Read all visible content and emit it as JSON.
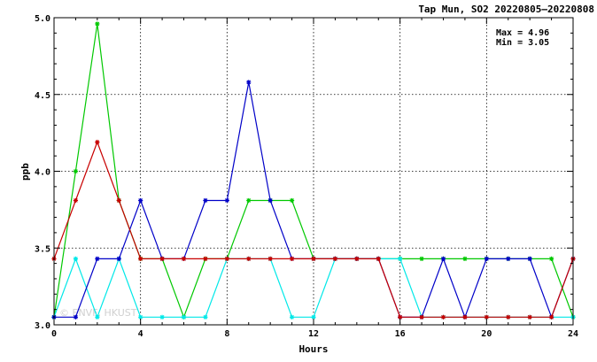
{
  "chart_data": {
    "type": "line",
    "title": "Tap Mun, SO2 20220805—20220808",
    "xlabel": "Hours",
    "ylabel": "ppb",
    "xlim": [
      0,
      24
    ],
    "ylim": [
      3.0,
      5.0
    ],
    "xticks": [
      0,
      4,
      8,
      12,
      16,
      20,
      24
    ],
    "xtick_labels": [
      "0",
      "4",
      "8",
      "12",
      "16",
      "20",
      "24"
    ],
    "yticks": [
      3.0,
      3.5,
      4.0,
      4.5,
      5.0
    ],
    "ytick_labels": [
      "3.0",
      "3.5",
      "4.0",
      "4.5",
      "5.0"
    ],
    "grid": true,
    "annotations": [
      "Max = 4.96",
      "Min = 3.05"
    ],
    "watermark": "© ENVF, HKUST",
    "x": [
      0,
      1,
      2,
      3,
      4,
      5,
      6,
      7,
      8,
      9,
      10,
      11,
      12,
      13,
      14,
      15,
      16,
      17,
      18,
      19,
      20,
      21,
      22,
      23,
      24
    ],
    "series": [
      {
        "color": "#00c800",
        "values": [
          3.05,
          4.0,
          4.96,
          3.81,
          3.43,
          3.43,
          3.05,
          3.43,
          3.43,
          3.81,
          3.81,
          3.81,
          3.43,
          3.43,
          3.43,
          3.43,
          3.43,
          3.43,
          3.43,
          3.43,
          3.43,
          3.43,
          3.43,
          3.43,
          3.05
        ]
      },
      {
        "color": "#00e8e8",
        "values": [
          3.05,
          3.43,
          3.05,
          3.43,
          3.05,
          3.05,
          3.05,
          3.05,
          3.43,
          3.43,
          3.43,
          3.05,
          3.05,
          3.43,
          3.43,
          3.43,
          3.43,
          3.05,
          3.05,
          3.05,
          3.05,
          3.05,
          3.05,
          3.05,
          3.05
        ]
      },
      {
        "color": "#0000c8",
        "values": [
          3.05,
          3.05,
          3.43,
          3.43,
          3.81,
          3.43,
          3.43,
          3.81,
          3.81,
          4.58,
          3.81,
          3.43,
          3.43,
          3.43,
          3.43,
          3.43,
          3.05,
          3.05,
          3.43,
          3.05,
          3.43,
          3.43,
          3.43,
          3.05,
          3.43
        ]
      },
      {
        "color": "#c80000",
        "values": [
          3.43,
          3.81,
          4.19,
          3.81,
          3.43,
          3.43,
          3.43,
          3.43,
          3.43,
          3.43,
          3.43,
          3.43,
          3.43,
          3.43,
          3.43,
          3.43,
          3.05,
          3.05,
          3.05,
          3.05,
          3.05,
          3.05,
          3.05,
          3.05,
          3.43
        ]
      }
    ]
  }
}
